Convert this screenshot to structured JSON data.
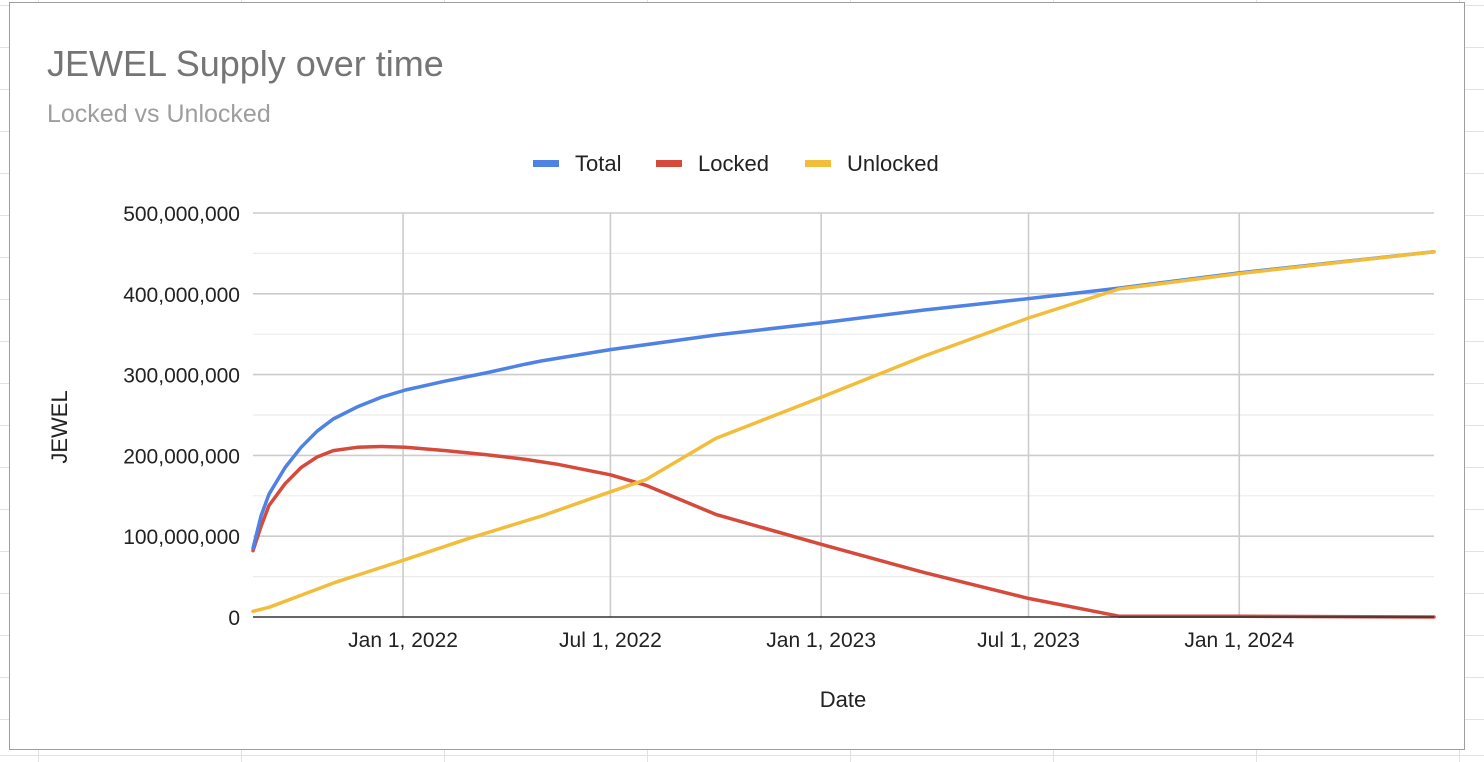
{
  "chart_data": {
    "type": "line",
    "title": "JEWEL Supply over time",
    "subtitle": "Locked vs Unlocked",
    "xlabel": "Date",
    "ylabel": "JEWEL",
    "x_ticks": [
      "Jan 1, 2022",
      "Jul 1, 2022",
      "Jan 1, 2023",
      "Jul 1, 2023",
      "Jan 1, 2024"
    ],
    "y_ticks": [
      "0",
      "100,000,000",
      "200,000,000",
      "300,000,000",
      "400,000,000",
      "500,000,000"
    ],
    "xlim": [
      "2021-08-23",
      "2024-06-19"
    ],
    "ylim": [
      0,
      500000000
    ],
    "grid": true,
    "legend_position": "top",
    "series": [
      {
        "name": "Total",
        "color": "#4e82e4",
        "points": [
          [
            "2021-08-23",
            85000000
          ],
          [
            "2021-08-30",
            125000000
          ],
          [
            "2021-09-06",
            152000000
          ],
          [
            "2021-09-20",
            185000000
          ],
          [
            "2021-10-04",
            210000000
          ],
          [
            "2021-10-18",
            230000000
          ],
          [
            "2021-11-01",
            245000000
          ],
          [
            "2021-11-22",
            260000000
          ],
          [
            "2021-12-13",
            272000000
          ],
          [
            "2022-01-03",
            281000000
          ],
          [
            "2022-02-07",
            292000000
          ],
          [
            "2022-03-14",
            302000000
          ],
          [
            "2022-04-18",
            313000000
          ],
          [
            "2022-05-02",
            317000000
          ],
          [
            "2022-07-01",
            331000000
          ],
          [
            "2022-10-01",
            349000000
          ],
          [
            "2023-01-01",
            364000000
          ],
          [
            "2023-04-01",
            380000000
          ],
          [
            "2023-07-01",
            394000000
          ],
          [
            "2023-09-18",
            407000000
          ],
          [
            "2024-01-01",
            426000000
          ],
          [
            "2024-06-19",
            452000000
          ]
        ]
      },
      {
        "name": "Locked",
        "color": "#d54a3a",
        "points": [
          [
            "2021-08-23",
            82000000
          ],
          [
            "2021-08-30",
            112000000
          ],
          [
            "2021-09-06",
            138000000
          ],
          [
            "2021-09-20",
            165000000
          ],
          [
            "2021-10-04",
            185000000
          ],
          [
            "2021-10-18",
            198000000
          ],
          [
            "2021-11-01",
            206000000
          ],
          [
            "2021-11-22",
            210000000
          ],
          [
            "2021-12-13",
            211000000
          ],
          [
            "2022-01-03",
            210000000
          ],
          [
            "2022-02-07",
            206000000
          ],
          [
            "2022-03-14",
            201000000
          ],
          [
            "2022-04-18",
            195000000
          ],
          [
            "2022-05-16",
            189000000
          ],
          [
            "2022-07-01",
            176000000
          ],
          [
            "2022-08-01",
            163000000
          ],
          [
            "2022-10-01",
            127000000
          ],
          [
            "2023-01-01",
            90000000
          ],
          [
            "2023-04-01",
            55000000
          ],
          [
            "2023-07-01",
            23000000
          ],
          [
            "2023-09-18",
            1000000
          ],
          [
            "2024-01-01",
            1000000
          ],
          [
            "2024-06-19",
            0
          ]
        ]
      },
      {
        "name": "Unlocked",
        "color": "#f2bd3a",
        "points": [
          [
            "2021-08-23",
            7000000
          ],
          [
            "2021-09-06",
            12000000
          ],
          [
            "2021-10-04",
            27000000
          ],
          [
            "2021-11-01",
            42000000
          ],
          [
            "2022-01-03",
            71000000
          ],
          [
            "2022-03-01",
            98000000
          ],
          [
            "2022-05-02",
            125000000
          ],
          [
            "2022-07-01",
            155000000
          ],
          [
            "2022-08-01",
            170000000
          ],
          [
            "2022-10-01",
            221000000
          ],
          [
            "2023-01-01",
            272000000
          ],
          [
            "2023-04-01",
            323000000
          ],
          [
            "2023-07-01",
            370000000
          ],
          [
            "2023-09-18",
            406000000
          ],
          [
            "2024-01-01",
            425000000
          ],
          [
            "2024-06-19",
            452000000
          ]
        ]
      }
    ]
  }
}
